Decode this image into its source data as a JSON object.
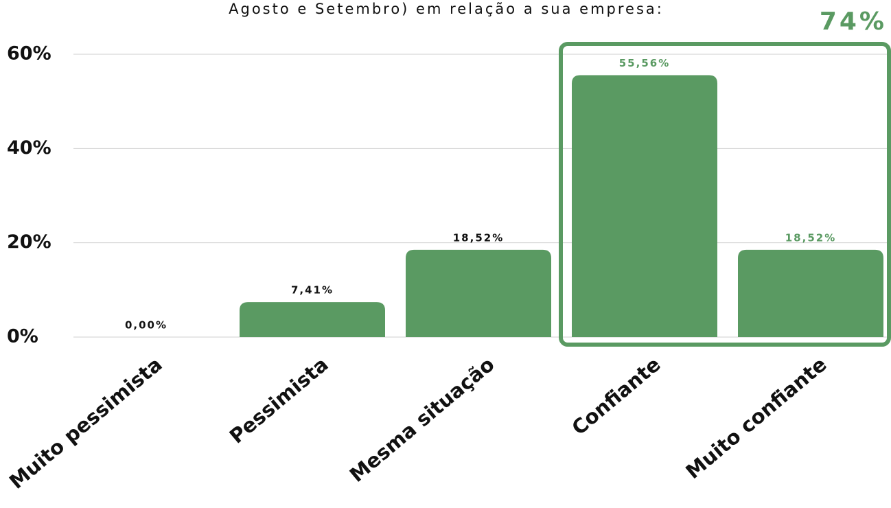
{
  "chart_data": {
    "type": "bar",
    "title": "Agosto e Setembro) em relação a sua empresa:",
    "categories": [
      "Muito pessimista",
      "Pessimista",
      "Mesma situação",
      "Confiante",
      "Muito confiante"
    ],
    "values": [
      0,
      7.41,
      18.52,
      55.56,
      18.52
    ],
    "value_labels": [
      "0,00%",
      "7,41%",
      "18,52%",
      "55,56%",
      "18,52%"
    ],
    "value_label_colors": [
      "#111111",
      "#111111",
      "#111111",
      "#5a9a62",
      "#5a9a62"
    ],
    "color": "#5a9a62",
    "ylim": [
      0,
      60
    ],
    "yticks": [
      {
        "value": 0,
        "label": "0%"
      },
      {
        "value": 20,
        "label": "20%"
      },
      {
        "value": 40,
        "label": "40%"
      },
      {
        "value": 60,
        "label": "60%"
      }
    ],
    "grid": true,
    "annotation": "74%"
  }
}
